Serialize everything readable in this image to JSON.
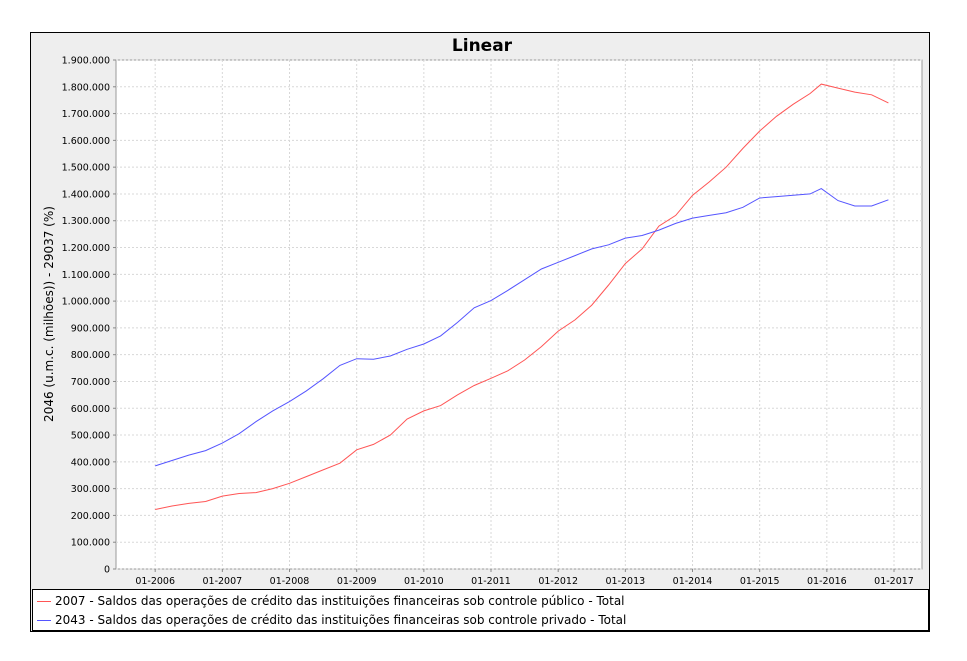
{
  "chart_data": {
    "type": "line",
    "title": "Linear",
    "ylabel": "2046 (u.m.c. (milhões)) - 29037 (%)",
    "xlabel": "",
    "ylim": [
      0,
      1900000
    ],
    "y_ticks": [
      0,
      100000,
      200000,
      300000,
      400000,
      500000,
      600000,
      700000,
      800000,
      900000,
      1000000,
      1100000,
      1200000,
      1300000,
      1400000,
      1500000,
      1600000,
      1700000,
      1800000,
      1900000
    ],
    "y_tick_labels": [
      "0",
      "100.000",
      "200.000",
      "300.000",
      "400.000",
      "500.000",
      "600.000",
      "700.000",
      "800.000",
      "900.000",
      "1.000.000",
      "1.100.000",
      "1.200.000",
      "1.300.000",
      "1.400.000",
      "1.500.000",
      "1.600.000",
      "1.700.000",
      "1.800.000",
      "1.900.000"
    ],
    "x_range": [
      "2005-06",
      "2017-06"
    ],
    "x_ticks": [
      "2006-01",
      "2007-01",
      "2008-01",
      "2009-01",
      "2010-01",
      "2011-01",
      "2012-01",
      "2013-01",
      "2014-01",
      "2015-01",
      "2016-01",
      "2017-01"
    ],
    "x_tick_labels": [
      "01-2006",
      "01-2007",
      "01-2008",
      "01-2009",
      "01-2010",
      "01-2011",
      "01-2012",
      "01-2013",
      "01-2014",
      "01-2015",
      "01-2016",
      "01-2017"
    ],
    "grid": true,
    "legend_position": "bottom",
    "series": [
      {
        "name": "2007 - Saldos das operações de crédito das instituições financeiras sob controle público - Total",
        "color": "#ff5555",
        "points": [
          [
            "2006-01",
            222000
          ],
          [
            "2006-04",
            235000
          ],
          [
            "2006-07",
            245000
          ],
          [
            "2006-10",
            252000
          ],
          [
            "2007-01",
            272000
          ],
          [
            "2007-04",
            282000
          ],
          [
            "2007-07",
            285000
          ],
          [
            "2007-10",
            300000
          ],
          [
            "2008-01",
            320000
          ],
          [
            "2008-04",
            345000
          ],
          [
            "2008-07",
            370000
          ],
          [
            "2008-10",
            395000
          ],
          [
            "2009-01",
            445000
          ],
          [
            "2009-04",
            465000
          ],
          [
            "2009-07",
            500000
          ],
          [
            "2009-10",
            560000
          ],
          [
            "2010-01",
            590000
          ],
          [
            "2010-04",
            610000
          ],
          [
            "2010-07",
            650000
          ],
          [
            "2010-10",
            685000
          ],
          [
            "2011-01",
            712000
          ],
          [
            "2011-04",
            740000
          ],
          [
            "2011-07",
            780000
          ],
          [
            "2011-10",
            830000
          ],
          [
            "2012-01",
            888000
          ],
          [
            "2012-04",
            930000
          ],
          [
            "2012-07",
            985000
          ],
          [
            "2012-10",
            1060000
          ],
          [
            "2013-01",
            1140000
          ],
          [
            "2013-04",
            1195000
          ],
          [
            "2013-07",
            1280000
          ],
          [
            "2013-10",
            1320000
          ],
          [
            "2014-01",
            1395000
          ],
          [
            "2014-04",
            1445000
          ],
          [
            "2014-07",
            1500000
          ],
          [
            "2014-10",
            1570000
          ],
          [
            "2015-01",
            1635000
          ],
          [
            "2015-04",
            1690000
          ],
          [
            "2015-07",
            1735000
          ],
          [
            "2015-10",
            1775000
          ],
          [
            "2015-12",
            1810000
          ],
          [
            "2016-03",
            1795000
          ],
          [
            "2016-06",
            1780000
          ],
          [
            "2016-09",
            1770000
          ],
          [
            "2016-12",
            1740000
          ]
        ]
      },
      {
        "name": "2043 - Saldos das operações de crédito das instituições financeiras sob controle privado - Total",
        "color": "#5555ff",
        "points": [
          [
            "2006-01",
            385000
          ],
          [
            "2006-04",
            405000
          ],
          [
            "2006-07",
            425000
          ],
          [
            "2006-10",
            442000
          ],
          [
            "2007-01",
            470000
          ],
          [
            "2007-04",
            505000
          ],
          [
            "2007-07",
            550000
          ],
          [
            "2007-10",
            590000
          ],
          [
            "2008-01",
            625000
          ],
          [
            "2008-04",
            665000
          ],
          [
            "2008-07",
            710000
          ],
          [
            "2008-10",
            760000
          ],
          [
            "2009-01",
            785000
          ],
          [
            "2009-04",
            783000
          ],
          [
            "2009-07",
            795000
          ],
          [
            "2009-10",
            820000
          ],
          [
            "2010-01",
            840000
          ],
          [
            "2010-04",
            870000
          ],
          [
            "2010-07",
            920000
          ],
          [
            "2010-10",
            975000
          ],
          [
            "2011-01",
            1002000
          ],
          [
            "2011-04",
            1040000
          ],
          [
            "2011-07",
            1080000
          ],
          [
            "2011-10",
            1120000
          ],
          [
            "2012-01",
            1145000
          ],
          [
            "2012-04",
            1170000
          ],
          [
            "2012-07",
            1195000
          ],
          [
            "2012-10",
            1210000
          ],
          [
            "2013-01",
            1235000
          ],
          [
            "2013-04",
            1245000
          ],
          [
            "2013-07",
            1265000
          ],
          [
            "2013-10",
            1290000
          ],
          [
            "2014-01",
            1310000
          ],
          [
            "2014-04",
            1320000
          ],
          [
            "2014-07",
            1330000
          ],
          [
            "2014-10",
            1350000
          ],
          [
            "2015-01",
            1385000
          ],
          [
            "2015-04",
            1390000
          ],
          [
            "2015-07",
            1395000
          ],
          [
            "2015-10",
            1400000
          ],
          [
            "2015-12",
            1420000
          ],
          [
            "2016-03",
            1375000
          ],
          [
            "2016-06",
            1355000
          ],
          [
            "2016-09",
            1355000
          ],
          [
            "2016-12",
            1378000
          ]
        ]
      }
    ]
  }
}
